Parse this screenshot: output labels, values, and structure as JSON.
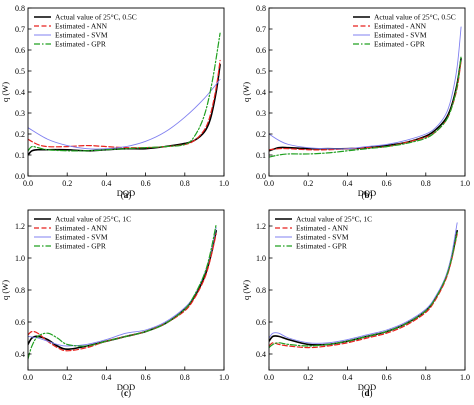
{
  "colors": {
    "actual": "#000000",
    "ann": "#e8221d",
    "svm": "#8080f0",
    "gpr": "#20a020"
  },
  "chart_data": [
    {
      "type": "line",
      "panel_label": "a",
      "caption_open": "(",
      "caption_close": ")",
      "xlabel": "DOD",
      "ylabel": "q (W)",
      "xlim": [
        0,
        1.0
      ],
      "ylim": [
        0,
        0.8
      ],
      "xticks": [
        0,
        0.2,
        0.4,
        0.6,
        0.8,
        1.0
      ],
      "yticks": [
        0,
        0.1,
        0.2,
        0.3,
        0.4,
        0.5,
        0.6,
        0.7,
        0.8
      ],
      "legend_position": "top-left",
      "series": [
        {
          "name": "Actual value of 25°C, 0.5C",
          "style": "actual",
          "x": [
            0,
            0.02,
            0.05,
            0.1,
            0.2,
            0.3,
            0.4,
            0.5,
            0.6,
            0.7,
            0.8,
            0.85,
            0.9,
            0.93,
            0.96,
            0.98
          ],
          "y": [
            0.1,
            0.12,
            0.125,
            0.125,
            0.125,
            0.12,
            0.125,
            0.13,
            0.13,
            0.14,
            0.155,
            0.17,
            0.21,
            0.27,
            0.4,
            0.53
          ]
        },
        {
          "name": "Estimated - ANN",
          "style": "ann",
          "x": [
            0,
            0.05,
            0.1,
            0.2,
            0.3,
            0.4,
            0.5,
            0.6,
            0.7,
            0.8,
            0.85,
            0.9,
            0.93,
            0.96,
            0.98
          ],
          "y": [
            0.175,
            0.15,
            0.14,
            0.14,
            0.145,
            0.14,
            0.135,
            0.135,
            0.14,
            0.15,
            0.17,
            0.22,
            0.29,
            0.42,
            0.55
          ]
        },
        {
          "name": "Estimated - SVM",
          "style": "svm",
          "x": [
            0,
            0.1,
            0.2,
            0.3,
            0.4,
            0.5,
            0.6,
            0.7,
            0.8,
            0.9,
            0.98
          ],
          "y": [
            0.23,
            0.175,
            0.145,
            0.13,
            0.13,
            0.14,
            0.165,
            0.21,
            0.28,
            0.37,
            0.46
          ]
        },
        {
          "name": "Estimated - GPR",
          "style": "gpr",
          "x": [
            0,
            0.02,
            0.05,
            0.1,
            0.2,
            0.3,
            0.4,
            0.5,
            0.6,
            0.7,
            0.8,
            0.85,
            0.9,
            0.94,
            0.98
          ],
          "y": [
            0.12,
            0.14,
            0.135,
            0.125,
            0.12,
            0.12,
            0.125,
            0.13,
            0.135,
            0.14,
            0.15,
            0.19,
            0.29,
            0.45,
            0.68
          ]
        }
      ]
    },
    {
      "type": "line",
      "panel_label": "b",
      "caption_open": "(",
      "caption_close": ")",
      "xlabel": "DOD",
      "ylabel": "q (W)",
      "xlim": [
        0,
        1.0
      ],
      "ylim": [
        0,
        0.8
      ],
      "xticks": [
        0,
        0.2,
        0.4,
        0.6,
        0.8,
        1.0
      ],
      "yticks": [
        0,
        0.1,
        0.2,
        0.3,
        0.4,
        0.5,
        0.6,
        0.7,
        0.8
      ],
      "legend_position": "top-right",
      "series": [
        {
          "name": "Actual value of 25°C, 0.5C",
          "style": "actual",
          "x": [
            0,
            0.05,
            0.1,
            0.2,
            0.3,
            0.4,
            0.5,
            0.6,
            0.7,
            0.8,
            0.85,
            0.9,
            0.93,
            0.96,
            0.98
          ],
          "y": [
            0.12,
            0.135,
            0.135,
            0.13,
            0.13,
            0.13,
            0.135,
            0.145,
            0.16,
            0.19,
            0.22,
            0.27,
            0.33,
            0.44,
            0.56
          ]
        },
        {
          "name": "Estimated - ANN",
          "style": "ann",
          "x": [
            0,
            0.05,
            0.1,
            0.2,
            0.3,
            0.4,
            0.5,
            0.6,
            0.7,
            0.8,
            0.85,
            0.9,
            0.93,
            0.96,
            0.98
          ],
          "y": [
            0.125,
            0.13,
            0.13,
            0.125,
            0.125,
            0.13,
            0.135,
            0.14,
            0.16,
            0.185,
            0.21,
            0.26,
            0.32,
            0.42,
            0.55
          ]
        },
        {
          "name": "Estimated - SVM",
          "style": "svm",
          "x": [
            0,
            0.05,
            0.1,
            0.2,
            0.3,
            0.4,
            0.5,
            0.6,
            0.7,
            0.8,
            0.85,
            0.9,
            0.93,
            0.96,
            0.98
          ],
          "y": [
            0.2,
            0.17,
            0.15,
            0.135,
            0.13,
            0.13,
            0.14,
            0.15,
            0.17,
            0.2,
            0.23,
            0.29,
            0.37,
            0.52,
            0.71
          ]
        },
        {
          "name": "Estimated - GPR",
          "style": "gpr",
          "x": [
            0,
            0.05,
            0.1,
            0.2,
            0.3,
            0.4,
            0.5,
            0.6,
            0.7,
            0.8,
            0.85,
            0.9,
            0.93,
            0.96,
            0.98
          ],
          "y": [
            0.09,
            0.1,
            0.105,
            0.105,
            0.11,
            0.12,
            0.13,
            0.14,
            0.155,
            0.18,
            0.21,
            0.26,
            0.32,
            0.43,
            0.57
          ]
        }
      ]
    },
    {
      "type": "line",
      "panel_label": "c",
      "caption_open": "(",
      "caption_close": ")",
      "xlabel": "DOD",
      "ylabel": "q (W)",
      "xlim": [
        0,
        1.0
      ],
      "ylim": [
        0.3,
        1.3
      ],
      "xticks": [
        0,
        0.2,
        0.4,
        0.6,
        0.8,
        1.0
      ],
      "yticks": [
        0.4,
        0.6,
        0.8,
        1.0,
        1.2
      ],
      "legend_position": "top-left",
      "series": [
        {
          "name": "Actual value of 25°C, 1C",
          "style": "actual",
          "x": [
            0,
            0.02,
            0.05,
            0.1,
            0.15,
            0.2,
            0.3,
            0.4,
            0.5,
            0.6,
            0.7,
            0.8,
            0.85,
            0.9,
            0.93,
            0.96
          ],
          "y": [
            0.46,
            0.5,
            0.51,
            0.49,
            0.45,
            0.43,
            0.45,
            0.48,
            0.51,
            0.54,
            0.59,
            0.68,
            0.76,
            0.88,
            1.0,
            1.17
          ]
        },
        {
          "name": "Estimated - ANN",
          "style": "ann",
          "x": [
            0,
            0.02,
            0.05,
            0.1,
            0.15,
            0.2,
            0.3,
            0.4,
            0.5,
            0.6,
            0.7,
            0.8,
            0.85,
            0.9,
            0.93,
            0.96
          ],
          "y": [
            0.52,
            0.54,
            0.53,
            0.48,
            0.44,
            0.42,
            0.44,
            0.48,
            0.51,
            0.54,
            0.59,
            0.67,
            0.75,
            0.87,
            0.99,
            1.15
          ]
        },
        {
          "name": "Estimated - SVM",
          "style": "svm",
          "x": [
            0,
            0.05,
            0.1,
            0.15,
            0.2,
            0.3,
            0.4,
            0.5,
            0.6,
            0.7,
            0.8,
            0.85,
            0.9,
            0.93,
            0.96
          ],
          "y": [
            0.51,
            0.5,
            0.48,
            0.46,
            0.45,
            0.46,
            0.49,
            0.53,
            0.55,
            0.6,
            0.69,
            0.77,
            0.9,
            1.02,
            1.19
          ]
        },
        {
          "name": "Estimated - GPR",
          "style": "gpr",
          "x": [
            0,
            0.02,
            0.05,
            0.1,
            0.15,
            0.2,
            0.3,
            0.4,
            0.5,
            0.6,
            0.7,
            0.8,
            0.85,
            0.9,
            0.93,
            0.96
          ],
          "y": [
            0.37,
            0.45,
            0.51,
            0.53,
            0.5,
            0.46,
            0.45,
            0.48,
            0.51,
            0.54,
            0.59,
            0.68,
            0.77,
            0.9,
            1.03,
            1.21
          ]
        }
      ]
    },
    {
      "type": "line",
      "panel_label": "d",
      "caption_open": "(",
      "caption_close": ")",
      "xlabel": "DOD",
      "ylabel": "q (W)",
      "xlim": [
        0,
        1.0
      ],
      "ylim": [
        0.3,
        1.3
      ],
      "xticks": [
        0,
        0.2,
        0.4,
        0.6,
        0.8,
        1.0
      ],
      "yticks": [
        0.4,
        0.6,
        0.8,
        1.0,
        1.2
      ],
      "legend_position": "top-left",
      "series": [
        {
          "name": "Actual value of 25°C, 1C",
          "style": "actual",
          "x": [
            0,
            0.02,
            0.05,
            0.1,
            0.2,
            0.3,
            0.4,
            0.5,
            0.6,
            0.7,
            0.8,
            0.85,
            0.9,
            0.93,
            0.96
          ],
          "y": [
            0.48,
            0.51,
            0.51,
            0.49,
            0.46,
            0.46,
            0.48,
            0.51,
            0.54,
            0.59,
            0.67,
            0.75,
            0.87,
            0.99,
            1.17
          ]
        },
        {
          "name": "Estimated - ANN",
          "style": "ann",
          "x": [
            0,
            0.02,
            0.05,
            0.1,
            0.2,
            0.3,
            0.4,
            0.5,
            0.6,
            0.7,
            0.8,
            0.85,
            0.9,
            0.93,
            0.96
          ],
          "y": [
            0.45,
            0.47,
            0.46,
            0.45,
            0.44,
            0.45,
            0.47,
            0.5,
            0.53,
            0.58,
            0.66,
            0.74,
            0.86,
            0.98,
            1.15
          ]
        },
        {
          "name": "Estimated - SVM",
          "style": "svm",
          "x": [
            0,
            0.02,
            0.05,
            0.1,
            0.2,
            0.3,
            0.4,
            0.5,
            0.6,
            0.7,
            0.8,
            0.85,
            0.9,
            0.93,
            0.96
          ],
          "y": [
            0.5,
            0.53,
            0.53,
            0.5,
            0.47,
            0.47,
            0.49,
            0.52,
            0.55,
            0.6,
            0.68,
            0.76,
            0.88,
            1.01,
            1.22
          ]
        },
        {
          "name": "Estimated - GPR",
          "style": "gpr",
          "x": [
            0,
            0.02,
            0.05,
            0.1,
            0.2,
            0.3,
            0.4,
            0.5,
            0.6,
            0.7,
            0.8,
            0.85,
            0.9,
            0.93,
            0.96
          ],
          "y": [
            0.44,
            0.46,
            0.47,
            0.46,
            0.45,
            0.46,
            0.48,
            0.51,
            0.54,
            0.59,
            0.67,
            0.75,
            0.87,
            0.99,
            1.16
          ]
        }
      ]
    }
  ]
}
